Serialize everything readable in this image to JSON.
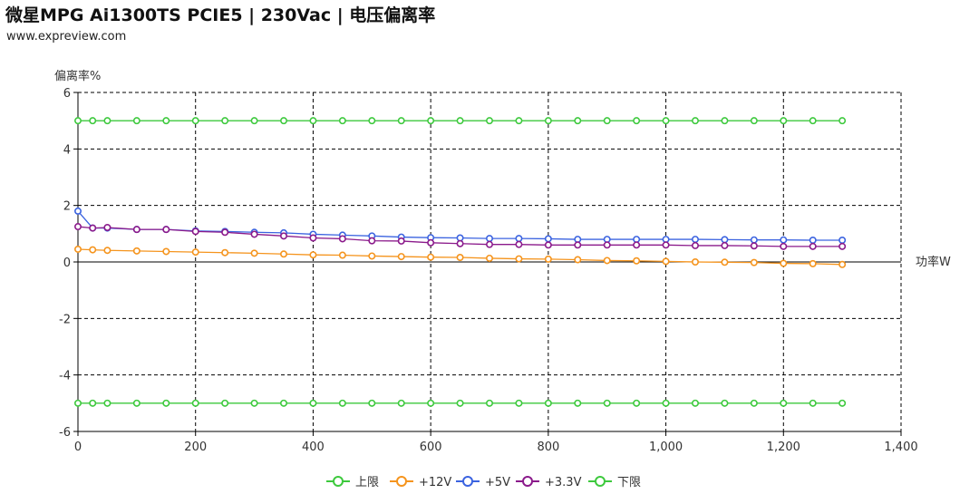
{
  "header": {
    "title": "微星MPG Ai1300TS PCIE5 | 230Vac | 电压偏离率",
    "source": "www.expreview.com"
  },
  "chart_data": {
    "type": "line",
    "title": "微星MPG Ai1300TS PCIE5 | 230Vac | 电压偏离率",
    "xlabel": "功率W",
    "ylabel": "偏离率%",
    "xlim": [
      0,
      1400
    ],
    "ylim": [
      -6,
      6
    ],
    "xticks": [
      0,
      200,
      400,
      600,
      800,
      1000,
      1200,
      1400
    ],
    "xtick_labels": [
      "0",
      "200",
      "400",
      "600",
      "800",
      "1,000",
      "1,200",
      "1,400"
    ],
    "yticks": [
      -6,
      -4,
      -2,
      0,
      2,
      4,
      6
    ],
    "ytick_labels": [
      "-6",
      "-4",
      "-2",
      "0",
      "2",
      "4",
      "6"
    ],
    "grid": true,
    "legend_position": "bottom",
    "x": [
      0,
      25,
      50,
      100,
      150,
      200,
      250,
      300,
      350,
      400,
      450,
      500,
      550,
      600,
      650,
      700,
      750,
      800,
      850,
      900,
      950,
      1000,
      1050,
      1100,
      1150,
      1200,
      1250,
      1300
    ],
    "series": [
      {
        "name": "上限",
        "color": "#3dc93d",
        "values": [
          5,
          5,
          5,
          5,
          5,
          5,
          5,
          5,
          5,
          5,
          5,
          5,
          5,
          5,
          5,
          5,
          5,
          5,
          5,
          5,
          5,
          5,
          5,
          5,
          5,
          5,
          5,
          5
        ]
      },
      {
        "name": "+12V",
        "color": "#f5941d",
        "values": [
          0.45,
          0.43,
          0.41,
          0.39,
          0.37,
          0.35,
          0.33,
          0.31,
          0.28,
          0.25,
          0.24,
          0.21,
          0.19,
          0.17,
          0.16,
          0.13,
          0.11,
          0.1,
          0.08,
          0.05,
          0.04,
          0.02,
          0.0,
          -0.01,
          -0.02,
          -0.05,
          -0.06,
          -0.09
        ]
      },
      {
        "name": "+5V",
        "color": "#3b63e0",
        "values": [
          1.8,
          1.2,
          1.2,
          1.15,
          1.15,
          1.1,
          1.08,
          1.05,
          1.03,
          0.98,
          0.95,
          0.92,
          0.88,
          0.86,
          0.85,
          0.83,
          0.83,
          0.82,
          0.8,
          0.8,
          0.8,
          0.8,
          0.8,
          0.79,
          0.78,
          0.78,
          0.77,
          0.77
        ]
      },
      {
        "name": "+3.3V",
        "color": "#8b1a8b",
        "values": [
          1.25,
          1.2,
          1.22,
          1.15,
          1.15,
          1.08,
          1.05,
          0.98,
          0.92,
          0.85,
          0.82,
          0.75,
          0.74,
          0.68,
          0.65,
          0.62,
          0.62,
          0.6,
          0.6,
          0.6,
          0.6,
          0.6,
          0.58,
          0.58,
          0.57,
          0.55,
          0.55,
          0.55
        ]
      },
      {
        "name": "下限",
        "color": "#3dc93d",
        "values": [
          -5,
          -5,
          -5,
          -5,
          -5,
          -5,
          -5,
          -5,
          -5,
          -5,
          -5,
          -5,
          -5,
          -5,
          -5,
          -5,
          -5,
          -5,
          -5,
          -5,
          -5,
          -5,
          -5,
          -5,
          -5,
          -5,
          -5,
          -5
        ]
      }
    ]
  }
}
